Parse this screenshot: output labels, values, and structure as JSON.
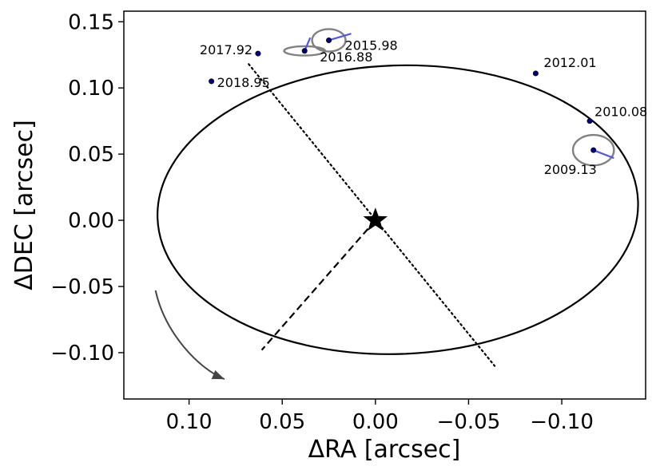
{
  "chart_data": {
    "type": "scatter",
    "title": "",
    "xlabel": "ΔRA [arcsec]",
    "ylabel": "ΔDEC [arcsec]",
    "xlim": [
      0.135,
      -0.145
    ],
    "ylim": [
      -0.135,
      0.158
    ],
    "x_inverted": true,
    "grid": false,
    "xticks": [
      0.1,
      0.05,
      0.0,
      -0.05,
      -0.1
    ],
    "xtick_labels": [
      "0.10",
      "0.05",
      "0.00",
      "−0.05",
      "−0.10"
    ],
    "yticks": [
      0.15,
      0.1,
      0.05,
      0.0,
      -0.05,
      -0.1
    ],
    "ytick_labels": [
      "0.15",
      "0.10",
      "0.05",
      "0.00",
      "−0.05",
      "−0.10"
    ],
    "star": {
      "x": 0.0,
      "y": 0.0
    },
    "orbit": {
      "center": [
        -0.012,
        0.008
      ],
      "semi_major": 0.129,
      "semi_minor": 0.109,
      "tilt_deg": -2
    },
    "observations": [
      {
        "epoch": "2009.13",
        "x": -0.117,
        "y": 0.053,
        "err_rx": 0.011,
        "err_ry": 0.0115,
        "model_x": -0.128,
        "model_y": 0.047
      },
      {
        "epoch": "2010.08",
        "x": -0.115,
        "y": 0.075,
        "err_rx": 0,
        "err_ry": 0,
        "model_x": -0.115,
        "model_y": 0.075
      },
      {
        "epoch": "2012.01",
        "x": -0.086,
        "y": 0.111,
        "err_rx": 0,
        "err_ry": 0,
        "model_x": -0.086,
        "model_y": 0.111
      },
      {
        "epoch": "2015.98",
        "x": 0.025,
        "y": 0.136,
        "err_rx": 0.009,
        "err_ry": 0.0085,
        "model_x": 0.013,
        "model_y": 0.141
      },
      {
        "epoch": "2016.88",
        "x": 0.038,
        "y": 0.128,
        "err_rx": 0.011,
        "err_ry": 0.0035,
        "model_x": 0.035,
        "model_y": 0.138
      },
      {
        "epoch": "2017.92",
        "x": 0.063,
        "y": 0.126,
        "err_rx": 0,
        "err_ry": 0,
        "model_x": 0.063,
        "model_y": 0.126
      },
      {
        "epoch": "2018.95",
        "x": 0.088,
        "y": 0.105,
        "err_rx": 0,
        "err_ry": 0,
        "model_x": 0.088,
        "model_y": 0.105
      }
    ],
    "line_of_nodes": {
      "style": "dotted",
      "from": [
        0.068,
        0.118
      ],
      "to": [
        -0.064,
        -0.11
      ]
    },
    "periastron_line": {
      "style": "dashed",
      "from": [
        0.0,
        0.0
      ],
      "to": [
        0.061,
        -0.098
      ]
    },
    "direction_arrow": {
      "path": [
        [
          0.118,
          -0.053
        ],
        [
          0.113,
          -0.085
        ],
        [
          0.095,
          -0.112
        ],
        [
          0.081,
          -0.12
        ]
      ]
    },
    "colors": {
      "orbit": "#000000",
      "points": "#000080",
      "residuals": "#5555ee",
      "error_ellipses": "#808080",
      "arrow": "#444444"
    }
  }
}
